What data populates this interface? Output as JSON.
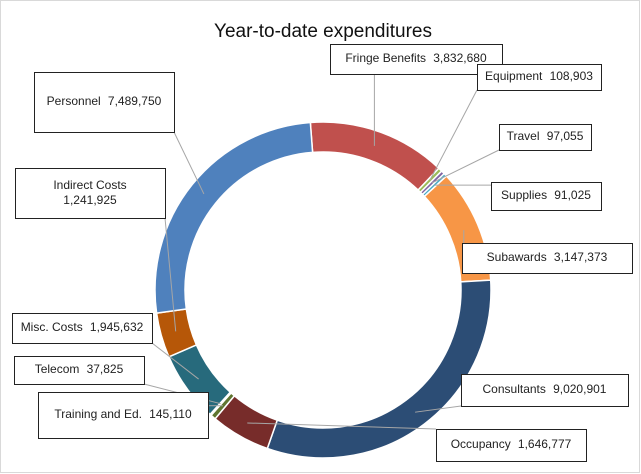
{
  "chart_data": {
    "type": "donut",
    "title": "Year-to-date expenditures",
    "categories": [
      "Fringe Benefits",
      "Equipment",
      "Travel",
      "Supplies",
      "Subawards",
      "Consultants",
      "Occupancy",
      "Training and Ed.",
      "Telecom",
      "Misc. Costs",
      "Indirect Costs",
      "Personnel"
    ],
    "values": [
      3832680,
      108903,
      97055,
      91025,
      3147373,
      9020901,
      1646777,
      145110,
      37825,
      1945632,
      1241925,
      7489750
    ],
    "value_labels": [
      "3,832,680",
      "108,903",
      "97,055",
      "91,025",
      "3,147,373",
      "9,020,901",
      "1,646,777",
      "145,110",
      "37,825",
      "1,945,632",
      "1,241,925",
      "7,489,750"
    ],
    "colors": [
      "#c0504d",
      "#9bbb59",
      "#8064a2",
      "#4bacc6",
      "#f79646",
      "#2c4d75",
      "#772c2a",
      "#5f7530",
      "#4d3b62",
      "#276a7c",
      "#b65708",
      "#4f81bd"
    ]
  }
}
